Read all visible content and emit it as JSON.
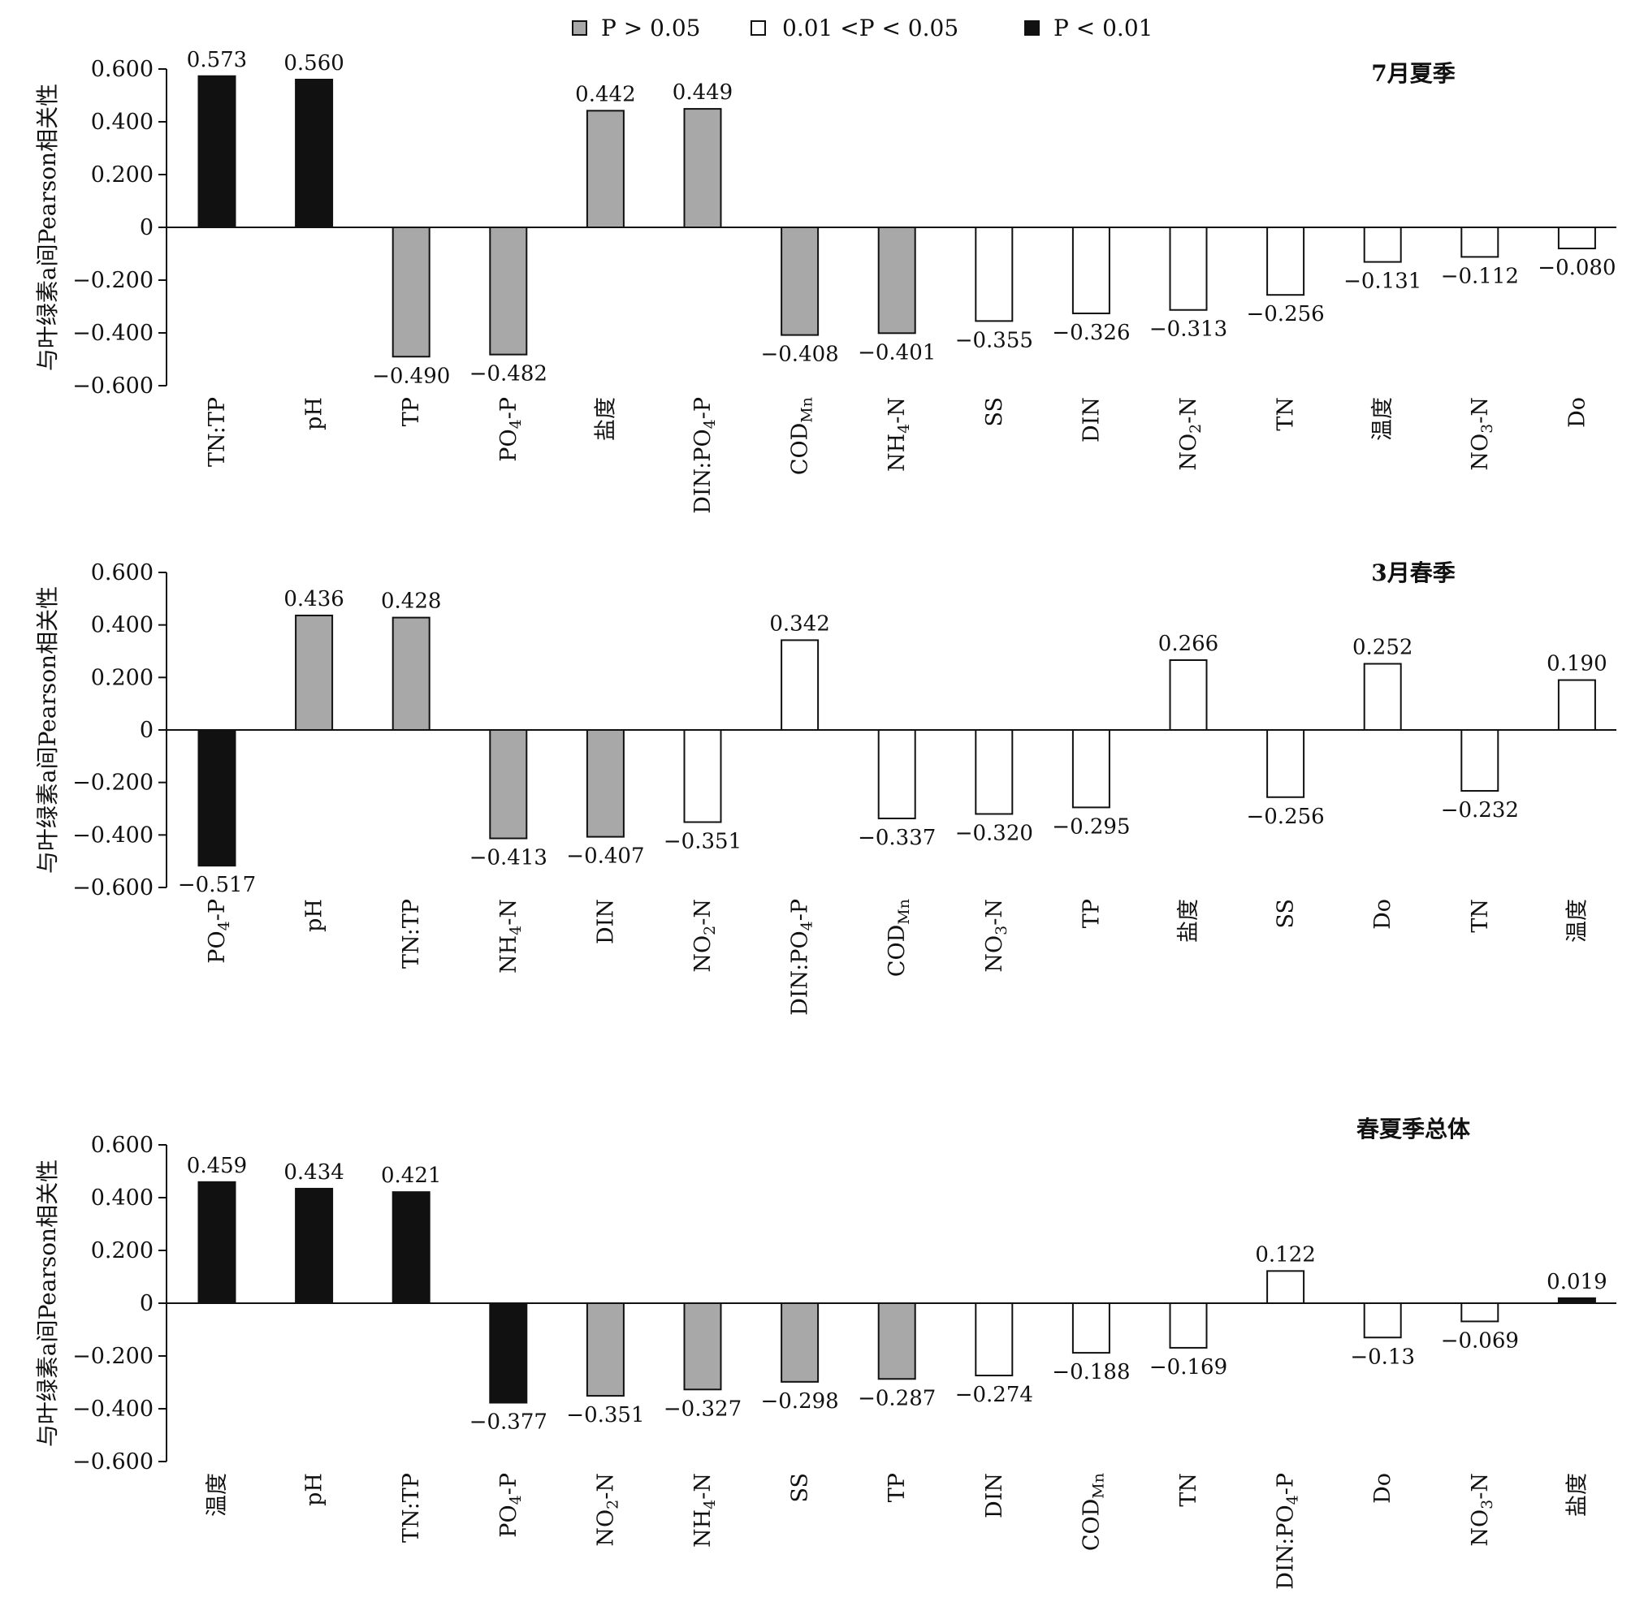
{
  "legend": [
    {
      "key": "gt005",
      "label": "P > 0.05",
      "color": "#a8a8a8"
    },
    {
      "key": "mid",
      "label": "0.01 <P < 0.05",
      "color": "#ffffff"
    },
    {
      "key": "lt001",
      "label": "P < 0.01",
      "color": "#111111"
    }
  ],
  "chart_data": [
    {
      "type": "bar",
      "title": "7月夏季",
      "ylabel": "与叶绿素a间Pearson相关性",
      "ylim": [
        -0.6,
        0.6
      ],
      "yticks": [
        "0.600",
        "0.400",
        "0.200",
        "0",
        "−0.200",
        "−0.400",
        "−0.600"
      ],
      "ytick_values": [
        0.6,
        0.4,
        0.2,
        0,
        -0.2,
        -0.4,
        -0.6
      ],
      "grid": false,
      "legend_position": "top-center",
      "categories": [
        "TN:TP",
        "pH",
        "TP",
        "PO4-P",
        "盐度",
        "DIN:PO4-P",
        "CODMn",
        "NH4-N",
        "SS",
        "DIN",
        "NO2-N",
        "TN",
        "温度",
        "NO3-N",
        "Do"
      ],
      "category_labels": [
        {
          "text": "TN:TP"
        },
        {
          "text": "pH"
        },
        {
          "text": "TP"
        },
        {
          "text": "PO",
          "sub": "4",
          "post": "-P"
        },
        {
          "text": "盐度"
        },
        {
          "text": "DIN:PO",
          "sub": "4",
          "post": "-P"
        },
        {
          "text": "COD",
          "sub": "Mn",
          "post": ""
        },
        {
          "text": "NH",
          "sub": "4",
          "post": "-N"
        },
        {
          "text": "SS"
        },
        {
          "text": "DIN"
        },
        {
          "text": "NO",
          "sub": "2",
          "post": "-N"
        },
        {
          "text": "TN"
        },
        {
          "text": "温度"
        },
        {
          "text": "NO",
          "sub": "3",
          "post": "-N"
        },
        {
          "text": "Do"
        }
      ],
      "values": [
        0.573,
        0.56,
        -0.49,
        -0.482,
        0.442,
        0.449,
        -0.408,
        -0.401,
        -0.355,
        -0.326,
        -0.313,
        -0.256,
        -0.131,
        -0.112,
        -0.08
      ],
      "value_labels": [
        "0.573",
        "0.560",
        "−0.490",
        "−0.482",
        "0.442",
        "0.449",
        "−0.408",
        "−0.401",
        "−0.355",
        "−0.326",
        "−0.313",
        "−0.256",
        "−0.131",
        "−0.112",
        "−0.080"
      ],
      "significance": [
        "lt001",
        "lt001",
        "gt005",
        "gt005",
        "gt005",
        "gt005",
        "gt005",
        "gt005",
        "mid",
        "mid",
        "mid",
        "mid",
        "mid",
        "mid",
        "mid"
      ]
    },
    {
      "type": "bar",
      "title": "3月春季",
      "ylabel": "与叶绿素a间Pearson相关性",
      "ylim": [
        -0.6,
        0.6
      ],
      "yticks": [
        "0.600",
        "0.400",
        "0.200",
        "0",
        "−0.200",
        "−0.400",
        "−0.600"
      ],
      "ytick_values": [
        0.6,
        0.4,
        0.2,
        0,
        -0.2,
        -0.4,
        -0.6
      ],
      "grid": false,
      "categories": [
        "PO4-P",
        "pH",
        "TN:TP",
        "NH4-N",
        "DIN",
        "NO2-N",
        "DIN:PO4-P",
        "CODMn",
        "NO3-N",
        "TP",
        "盐度",
        "SS",
        "Do",
        "TN",
        "温度"
      ],
      "category_labels": [
        {
          "text": "PO",
          "sub": "4",
          "post": "-P"
        },
        {
          "text": "pH"
        },
        {
          "text": "TN:TP"
        },
        {
          "text": "NH",
          "sub": "4",
          "post": "-N"
        },
        {
          "text": "DIN"
        },
        {
          "text": "NO",
          "sub": "2",
          "post": "-N"
        },
        {
          "text": "DIN:PO",
          "sub": "4",
          "post": "-P"
        },
        {
          "text": "COD",
          "sub": "Mn",
          "post": ""
        },
        {
          "text": "NO",
          "sub": "3",
          "post": "-N"
        },
        {
          "text": "TP"
        },
        {
          "text": "盐度"
        },
        {
          "text": "SS"
        },
        {
          "text": "Do"
        },
        {
          "text": "TN"
        },
        {
          "text": "温度"
        }
      ],
      "values": [
        -0.517,
        0.436,
        0.428,
        -0.413,
        -0.407,
        -0.351,
        0.342,
        -0.337,
        -0.32,
        -0.295,
        0.266,
        -0.256,
        0.252,
        -0.232,
        0.19
      ],
      "value_labels": [
        "−0.517",
        "0.436",
        "0.428",
        "−0.413",
        "−0.407",
        "−0.351",
        "0.342",
        "−0.337",
        "−0.320",
        "−0.295",
        "0.266",
        "−0.256",
        "0.252",
        "−0.232",
        "0.190"
      ],
      "significance": [
        "lt001",
        "gt005",
        "gt005",
        "gt005",
        "gt005",
        "mid",
        "mid",
        "mid",
        "mid",
        "mid",
        "mid",
        "mid",
        "mid",
        "mid",
        "mid"
      ]
    },
    {
      "type": "bar",
      "title": "春夏季总体",
      "ylabel": "与叶绿素a间Pearson相关性",
      "ylim": [
        -0.6,
        0.6
      ],
      "yticks": [
        "0.600",
        "0.400",
        "0.200",
        "0",
        "−0.200",
        "−0.400",
        "−0.600"
      ],
      "ytick_values": [
        0.6,
        0.4,
        0.2,
        0,
        -0.2,
        -0.4,
        -0.6
      ],
      "grid": false,
      "categories": [
        "温度",
        "pH",
        "TN:TP",
        "PO4-P",
        "NO2-N",
        "NH4-N",
        "SS",
        "TP",
        "DIN",
        "CODMn",
        "TN",
        "DIN:PO4-P",
        "Do",
        "NO3-N",
        "盐度"
      ],
      "category_labels": [
        {
          "text": "温度"
        },
        {
          "text": "pH"
        },
        {
          "text": "TN:TP"
        },
        {
          "text": "PO",
          "sub": "4",
          "post": "-P"
        },
        {
          "text": "NO",
          "sub": "2",
          "post": "-N"
        },
        {
          "text": "NH",
          "sub": "4",
          "post": "-N"
        },
        {
          "text": "SS"
        },
        {
          "text": "TP"
        },
        {
          "text": "DIN"
        },
        {
          "text": "COD",
          "sub": "Mn",
          "post": ""
        },
        {
          "text": "TN"
        },
        {
          "text": "DIN:PO",
          "sub": "4",
          "post": "-P"
        },
        {
          "text": "Do"
        },
        {
          "text": "NO",
          "sub": "3",
          "post": "-N"
        },
        {
          "text": "盐度"
        }
      ],
      "values": [
        0.459,
        0.434,
        0.421,
        -0.377,
        -0.351,
        -0.327,
        -0.298,
        -0.287,
        -0.274,
        -0.188,
        -0.169,
        0.122,
        -0.13,
        -0.069,
        0.019
      ],
      "value_labels": [
        "0.459",
        "0.434",
        "0.421",
        "−0.377",
        "−0.351",
        "−0.327",
        "−0.298",
        "−0.287",
        "−0.274",
        "−0.188",
        "−0.169",
        "0.122",
        "−0.13",
        "−0.069",
        "0.019"
      ],
      "significance": [
        "lt001",
        "lt001",
        "lt001",
        "lt001",
        "gt005",
        "gt005",
        "gt005",
        "gt005",
        "mid",
        "mid",
        "mid",
        "mid",
        "mid",
        "mid",
        "lt001"
      ]
    }
  ]
}
